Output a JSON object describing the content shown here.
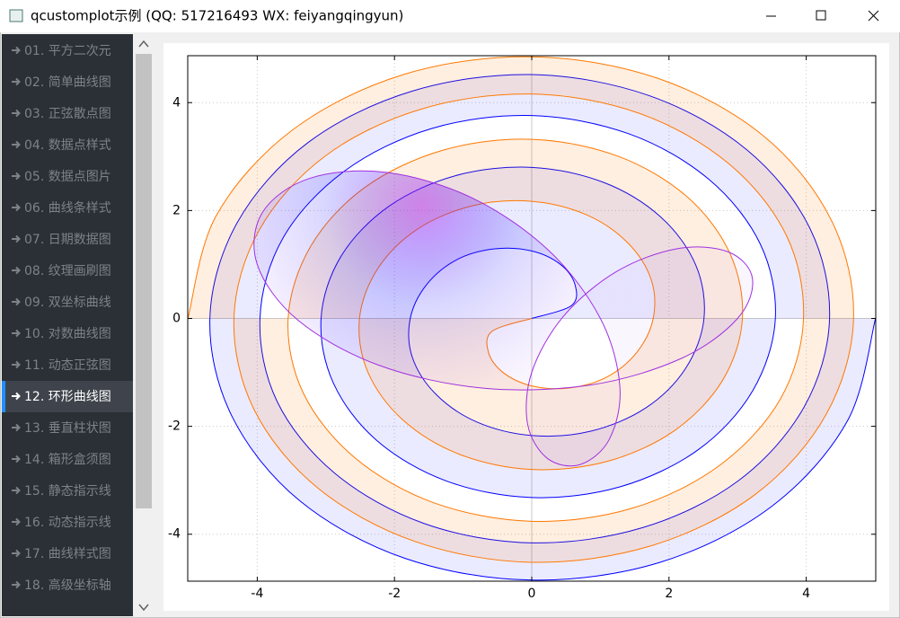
{
  "window": {
    "title": "qcustomplot示例 (QQ: 517216493 WX: feiyangqingyun)"
  },
  "sidebar": {
    "items": [
      "01. 平方二次元",
      "02. 简单曲线图",
      "03. 正弦散点图",
      "04. 数据点样式",
      "05. 数据点图片",
      "06. 曲线条样式",
      "07. 日期数据图",
      "08. 纹理画刷图",
      "09. 双坐标曲线",
      "10. 对数曲线图",
      "11. 动态正弦图",
      "12. 环形曲线图",
      "13. 垂直柱状图",
      "14. 箱形盒须图",
      "15. 静态指示线",
      "16. 动态指示线",
      "17. 曲线样式图",
      "18. 高级坐标轴"
    ],
    "selected": 11
  },
  "chart_data": {
    "type": "curve",
    "xlim": [
      -5.013,
      5.013
    ],
    "ylim": [
      -4.87,
      4.87
    ],
    "xticks": [
      -4,
      -2,
      0,
      2,
      4
    ],
    "yticks": [
      -4,
      -2,
      0,
      2,
      4
    ],
    "grid": true,
    "series": [
      {
        "color": "#0000ff",
        "fill": "rgba(0,0,255,0.08)",
        "x": [
          0,
          0.58,
          0.63,
          0.42,
          0,
          -0.54,
          -1.09,
          -1.53,
          -1.77,
          -1.74,
          -1.4,
          -0.8,
          0,
          0.86,
          1.66,
          2.24,
          2.51,
          2.39,
          1.88,
          1.05,
          0,
          -1.1,
          -2.08,
          -2.78,
          -3.07,
          -2.89,
          -2.26,
          -1.25,
          0,
          1.29,
          2.43,
          3.22,
          3.55,
          3.33,
          2.58,
          1.42,
          0,
          -1.46,
          -2.73,
          -3.62,
          -3.96,
          -3.71,
          -2.87,
          -1.57,
          0,
          1.61,
          3.01,
          3.97,
          4.34,
          4.05,
          3.13,
          1.71,
          0,
          -1.75,
          -3.26,
          -4.29,
          -4.69,
          -4.37,
          -3.38,
          -1.84,
          0,
          1.87,
          3.49,
          4.6,
          5.01
        ],
        "values": [
          0,
          0.24,
          0.63,
          1.0,
          1.25,
          1.29,
          1.09,
          0.63,
          0,
          -0.72,
          -1.4,
          -1.92,
          -2.17,
          -2.09,
          -1.66,
          -0.93,
          0,
          0.99,
          1.88,
          2.52,
          2.8,
          2.65,
          2.08,
          1.15,
          0,
          -1.2,
          -2.26,
          -3.01,
          -3.32,
          -3.12,
          -2.43,
          -1.34,
          0,
          1.38,
          2.58,
          3.42,
          3.76,
          3.52,
          2.73,
          1.5,
          0,
          -1.54,
          -2.87,
          -3.8,
          -4.16,
          -3.88,
          -3.01,
          -1.64,
          0,
          1.68,
          3.13,
          4.13,
          4.52,
          4.21,
          3.26,
          1.78,
          0,
          -1.81,
          -3.38,
          -4.45,
          -4.85,
          -4.52,
          -3.49,
          -1.9,
          0
        ]
      },
      {
        "color": "#ff7800",
        "fill": "rgba(255,120,0,0.12)",
        "x": [
          0,
          -0.58,
          -0.63,
          -0.42,
          0,
          0.54,
          1.09,
          1.53,
          1.77,
          1.74,
          1.4,
          0.8,
          0,
          -0.86,
          -1.66,
          -2.24,
          -2.51,
          -2.39,
          -1.88,
          -1.05,
          0,
          1.1,
          2.08,
          2.78,
          3.07,
          2.89,
          2.26,
          1.25,
          0,
          -1.29,
          -2.43,
          -3.22,
          -3.55,
          -3.33,
          -2.58,
          -1.42,
          0,
          1.46,
          2.73,
          3.62,
          3.96,
          3.71,
          2.87,
          1.57,
          0,
          -1.61,
          -3.01,
          -3.97,
          -4.34,
          -4.05,
          -3.13,
          -1.71,
          0,
          1.75,
          3.26,
          4.29,
          4.69,
          4.37,
          3.38,
          1.84,
          0,
          -1.87,
          -3.49,
          -4.6,
          -5.01
        ],
        "values": [
          0,
          -0.24,
          -0.63,
          -1.0,
          -1.25,
          -1.29,
          -1.09,
          -0.63,
          0,
          0.72,
          1.4,
          1.92,
          2.17,
          2.09,
          1.66,
          0.93,
          0,
          -0.99,
          -1.88,
          -2.52,
          -2.8,
          -2.65,
          -2.08,
          -1.15,
          0,
          1.2,
          2.26,
          3.01,
          3.32,
          3.12,
          2.43,
          1.34,
          0,
          -1.38,
          -2.58,
          -3.42,
          -3.76,
          -3.52,
          -2.73,
          -1.5,
          0,
          1.54,
          2.87,
          3.8,
          4.16,
          3.88,
          3.01,
          1.64,
          0,
          -1.68,
          -3.13,
          -4.13,
          -4.52,
          -4.21,
          -3.26,
          -1.78,
          0,
          1.81,
          3.38,
          4.45,
          4.85,
          4.52,
          3.49,
          1.9,
          0
        ]
      },
      {
        "color": "#a030e0",
        "fill": "radial",
        "gradient": [
          "rgba(170,20,240,0.45)",
          "rgba(20,10,255,0.16)",
          "rgba(120,20,240,0.04)"
        ],
        "x": [
          3,
          3.216,
          2.866,
          2.121,
          1.232,
          0.459,
          0,
          -0.059,
          0.232,
          0.707,
          1.134,
          1.284,
          1,
          0.248,
          -0.866,
          -2.121,
          -3.232,
          -3.923,
          -4,
          -3.405,
          -2.232,
          -0.707,
          0.866,
          2.18,
          3
        ],
        "values": [
          0,
          0.741,
          1.232,
          1.293,
          0.866,
          0.034,
          -1,
          -1.966,
          -2.598,
          -2.707,
          -2.232,
          -1.259,
          0,
          1.259,
          2.232,
          2.707,
          2.598,
          1.966,
          1,
          -0.034,
          -0.866,
          -1.293,
          -1.232,
          -0.741,
          0
        ]
      }
    ]
  }
}
